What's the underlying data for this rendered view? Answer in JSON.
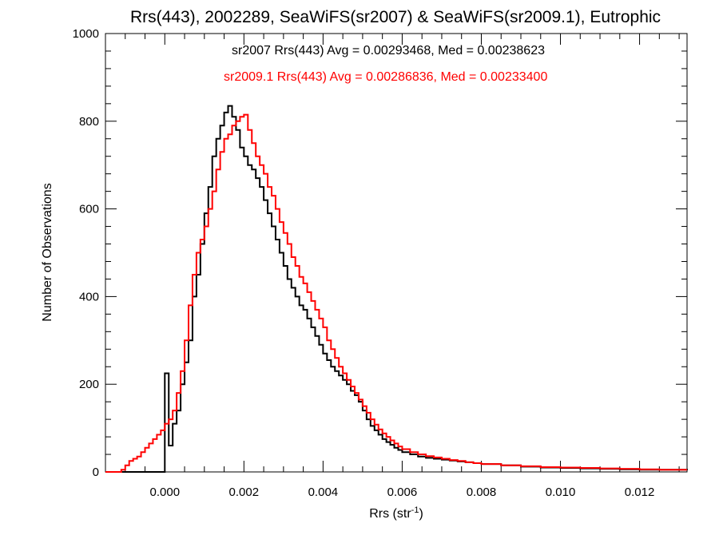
{
  "chart_data": {
    "type": "line",
    "title": "Rrs(443), 2002289, SeaWiFS(sr2007) & SeaWiFS(sr2009.1), Eutrophic",
    "xlabel_main": "Rrs (str",
    "xlabel_sup": "-1",
    "xlabel_end": ")",
    "ylabel": "Number of Observations",
    "xlim": [
      -0.0015,
      0.0132
    ],
    "ylim": [
      0,
      1000
    ],
    "x_ticks": [
      0.0,
      0.002,
      0.004,
      0.006,
      0.008,
      0.01,
      0.012
    ],
    "x_tick_labels": [
      "0.000",
      "0.002",
      "0.004",
      "0.006",
      "0.008",
      "0.010",
      "0.012"
    ],
    "y_ticks": [
      0,
      200,
      400,
      600,
      800,
      1000
    ],
    "y_tick_labels": [
      "0",
      "200",
      "400",
      "600",
      "800",
      "1000"
    ],
    "grid": false,
    "annotations": [
      {
        "text": "sr2007 Rrs(443) Avg = 0.00293468, Med = 0.00238623",
        "color": "#000000"
      },
      {
        "text": "sr2009.1 Rrs(443) Avg = 0.00286836, Med = 0.00233400",
        "color": "#ff0000"
      }
    ],
    "series": [
      {
        "color": "#000000",
        "x": [
          -0.0015,
          -0.0005,
          0.0,
          0.0001,
          0.0002,
          0.0003,
          0.0004,
          0.0005,
          0.0006,
          0.0007,
          0.0008,
          0.0009,
          0.001,
          0.0011,
          0.0012,
          0.0013,
          0.0014,
          0.0015,
          0.0016,
          0.0017,
          0.0018,
          0.0019,
          0.002,
          0.0021,
          0.0022,
          0.0023,
          0.0024,
          0.0025,
          0.0026,
          0.0027,
          0.0028,
          0.0029,
          0.003,
          0.0031,
          0.0032,
          0.0033,
          0.0034,
          0.0035,
          0.0036,
          0.0037,
          0.0038,
          0.0039,
          0.004,
          0.0041,
          0.0042,
          0.0043,
          0.0044,
          0.0045,
          0.0046,
          0.0047,
          0.0048,
          0.0049,
          0.005,
          0.0051,
          0.0052,
          0.0053,
          0.0054,
          0.0055,
          0.0056,
          0.0057,
          0.0058,
          0.0059,
          0.006,
          0.0062,
          0.0064,
          0.0066,
          0.0068,
          0.007,
          0.0072,
          0.0074,
          0.0076,
          0.0078,
          0.008,
          0.0085,
          0.009,
          0.0095,
          0.01,
          0.0105,
          0.011,
          0.0115,
          0.012,
          0.0125,
          0.0132
        ],
        "y": [
          0,
          0,
          225,
          60,
          110,
          140,
          200,
          250,
          300,
          400,
          450,
          520,
          590,
          650,
          720,
          760,
          790,
          820,
          835,
          810,
          780,
          740,
          720,
          700,
          690,
          670,
          650,
          620,
          590,
          560,
          530,
          500,
          470,
          440,
          420,
          400,
          380,
          370,
          350,
          330,
          310,
          290,
          270,
          255,
          240,
          230,
          220,
          210,
          200,
          185,
          175,
          160,
          140,
          120,
          105,
          95,
          85,
          75,
          68,
          62,
          55,
          50,
          45,
          40,
          35,
          32,
          30,
          28,
          26,
          24,
          22,
          20,
          18,
          15,
          12,
          10,
          9,
          8,
          7,
          6,
          5,
          5,
          4
        ]
      },
      {
        "color": "#ff0000",
        "x": [
          -0.0015,
          -0.0012,
          -0.0011,
          -0.001,
          -0.0009,
          -0.0008,
          -0.0007,
          -0.0006,
          -0.0005,
          -0.0004,
          -0.0003,
          -0.0002,
          -0.0001,
          0.0,
          0.0001,
          0.0002,
          0.0003,
          0.0004,
          0.0005,
          0.0006,
          0.0007,
          0.0008,
          0.0009,
          0.001,
          0.0011,
          0.0012,
          0.0013,
          0.0014,
          0.0015,
          0.0016,
          0.0017,
          0.0018,
          0.0019,
          0.002,
          0.0021,
          0.0022,
          0.0023,
          0.0024,
          0.0025,
          0.0026,
          0.0027,
          0.0028,
          0.0029,
          0.003,
          0.0031,
          0.0032,
          0.0033,
          0.0034,
          0.0035,
          0.0036,
          0.0037,
          0.0038,
          0.0039,
          0.004,
          0.0041,
          0.0042,
          0.0043,
          0.0044,
          0.0045,
          0.0046,
          0.0047,
          0.0048,
          0.0049,
          0.005,
          0.0051,
          0.0052,
          0.0053,
          0.0054,
          0.0055,
          0.0056,
          0.0057,
          0.0058,
          0.0059,
          0.006,
          0.0062,
          0.0064,
          0.0066,
          0.0068,
          0.007,
          0.0072,
          0.0074,
          0.0076,
          0.0078,
          0.008,
          0.0085,
          0.009,
          0.0095,
          0.01,
          0.0105,
          0.011,
          0.0115,
          0.012,
          0.0125,
          0.0132
        ],
        "y": [
          0,
          0,
          5,
          15,
          25,
          30,
          35,
          45,
          55,
          65,
          75,
          85,
          95,
          110,
          120,
          140,
          180,
          230,
          300,
          380,
          450,
          500,
          530,
          560,
          600,
          640,
          690,
          730,
          760,
          770,
          790,
          800,
          810,
          815,
          780,
          750,
          720,
          700,
          680,
          650,
          630,
          600,
          570,
          545,
          520,
          490,
          470,
          445,
          430,
          410,
          390,
          370,
          350,
          330,
          300,
          280,
          260,
          240,
          225,
          210,
          195,
          180,
          165,
          150,
          135,
          120,
          108,
          97,
          88,
          80,
          72,
          65,
          58,
          52,
          45,
          40,
          36,
          33,
          30,
          27,
          25,
          22,
          20,
          18,
          15,
          13,
          11,
          10,
          9,
          8,
          7,
          6,
          5,
          5
        ]
      }
    ]
  }
}
